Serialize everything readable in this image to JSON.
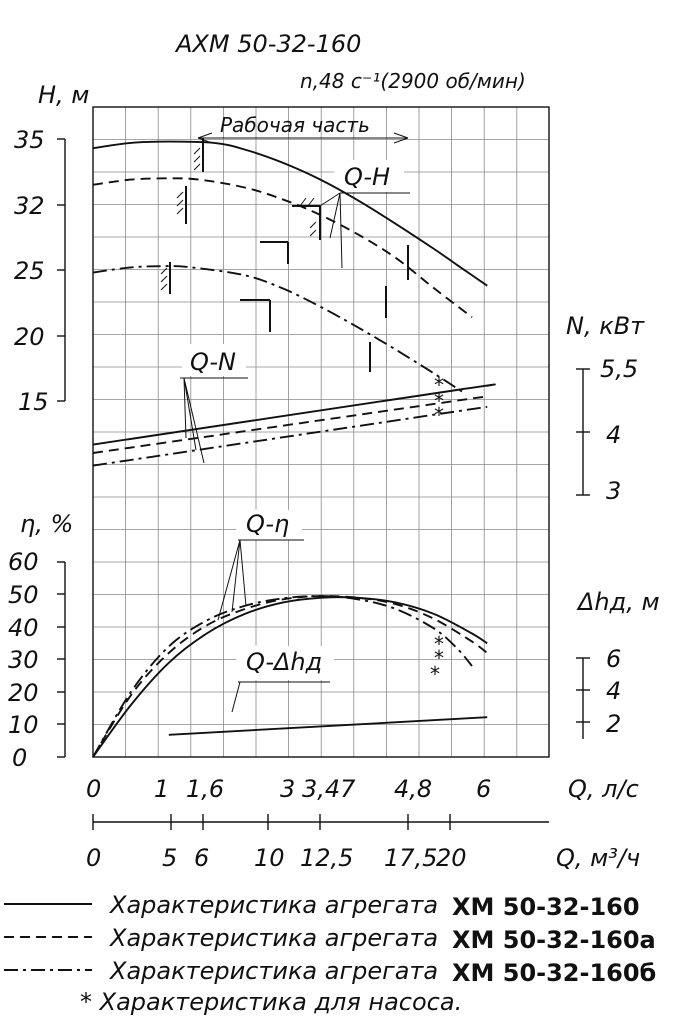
{
  "chart_data": {
    "type": "line",
    "title": "АХМ 50-32-160",
    "subtitle": "n,48 с⁻¹(2900 об/мин)",
    "x_axes": {
      "q_ls": {
        "label": "Q, л/с",
        "ticks": [
          {
            "label": "0",
            "value": 0
          },
          {
            "label": "1",
            "value": 1
          },
          {
            "label": "1,6",
            "value": 1.6
          },
          {
            "label": "3",
            "value": 3
          },
          {
            "label": "3,47",
            "value": 3.47
          },
          {
            "label": "4,8",
            "value": 4.8
          },
          {
            "label": "6",
            "value": 6
          }
        ]
      },
      "q_m3h": {
        "label": "Q, м³/ч",
        "ticks": [
          {
            "label": "0",
            "value": 0
          },
          {
            "label": "5",
            "value": 5
          },
          {
            "label": "6",
            "value": 6
          },
          {
            "label": "10",
            "value": 10
          },
          {
            "label": "12,5",
            "value": 12.5
          },
          {
            "label": "17,5",
            "value": 17.5
          },
          {
            "label": "20",
            "value": 20
          }
        ]
      }
    },
    "y_axes": {
      "head": {
        "label": "H, м",
        "ticks": [
          "35",
          "32",
          "25",
          "20",
          "15"
        ]
      },
      "power": {
        "label": "N, кВт",
        "ticks": [
          "5,5",
          "4",
          "3"
        ]
      },
      "efficiency": {
        "label": "η, %",
        "ticks": [
          "60",
          "50",
          "40",
          "30",
          "20",
          "10",
          "0"
        ]
      },
      "npsh": {
        "label": "Δhд, м",
        "ticks": [
          "6",
          "4",
          "2"
        ]
      }
    },
    "working_range_label": "Рабочая часть",
    "curve_labels": {
      "qh": "Q-H",
      "qn": "Q-N",
      "qeta": "Q-η",
      "qdh": "Q-Δhд"
    },
    "series": [
      {
        "id": "XM 50-32-160",
        "style": "solid",
        "head_q": [
          0,
          0.5,
          1.0,
          1.6,
          2.0,
          2.5,
          3.0,
          3.5,
          4.0,
          4.5,
          4.8,
          5.2
        ],
        "head_h": [
          34.3,
          34.7,
          34.8,
          34.7,
          34.2,
          33.2,
          31.9,
          30.3,
          28.5,
          26.6,
          25.4,
          23.8
        ],
        "power_q": [
          0,
          4.8,
          5.2
        ],
        "power_n": [
          3.7,
          5.0,
          5.1
        ],
        "eff_q": [
          0,
          0.5,
          1.0,
          1.5,
          2.0,
          2.5,
          3.0,
          3.5,
          4.0,
          4.5,
          5.0,
          5.2
        ],
        "eff_eta": [
          0,
          16,
          29,
          38,
          44,
          47.5,
          49,
          49,
          47.5,
          44,
          38,
          35
        ]
      },
      {
        "id": "XM 50-32-160a",
        "style": "dashed",
        "head_q": [
          0,
          0.5,
          1.0,
          1.4,
          2.0,
          2.5,
          3.0,
          3.5,
          4.0,
          4.5,
          5.0
        ],
        "head_h": [
          31.5,
          31.9,
          32.0,
          31.9,
          31.3,
          30.4,
          29.2,
          27.7,
          25.9,
          23.6,
          21.4
        ],
        "power_q": [
          0,
          5.2
        ],
        "power_n": [
          3.5,
          4.85
        ],
        "eff_q": [
          0,
          0.5,
          1.0,
          1.5,
          2.0,
          2.5,
          3.0,
          3.5,
          4.0,
          4.5,
          5.0,
          5.2
        ],
        "eff_eta": [
          0,
          19,
          32,
          40.5,
          45.5,
          48.5,
          49.5,
          49,
          47,
          42.5,
          35.5,
          32
        ]
      },
      {
        "id": "XM 50-32-160б",
        "style": "dashdot",
        "head_q": [
          0,
          0.5,
          1.0,
          1.3,
          2.0,
          2.5,
          3.0,
          3.5,
          4.0,
          4.5,
          4.9
        ],
        "head_h": [
          24.8,
          25.2,
          25.3,
          25.2,
          24.6,
          23.6,
          22.2,
          20.6,
          18.9,
          17.1,
          15.6
        ],
        "power_q": [
          0,
          5.2
        ],
        "power_n": [
          3.2,
          4.6
        ],
        "eff_q": [
          0,
          0.5,
          1.0,
          1.5,
          2.0,
          2.5,
          3.0,
          3.5,
          4.0,
          4.5,
          4.8,
          5.0
        ],
        "eff_eta": [
          0,
          20,
          34,
          42,
          46.5,
          48.8,
          49.5,
          48.5,
          45.5,
          39.5,
          33.5,
          28
        ]
      }
    ],
    "npsh_curve": {
      "q": [
        1.0,
        5.2
      ],
      "dh": [
        1.2,
        2.3
      ]
    },
    "legend": [
      {
        "style": "solid",
        "text": "Характеристика агрегата",
        "model": "ХМ 50-32-160"
      },
      {
        "style": "dashed",
        "text": "Характеристика агрегата",
        "model": "ХМ 50-32-160а"
      },
      {
        "style": "dashdot",
        "text": "Характеристика агрегата",
        "model": "ХМ 50-32-160б"
      }
    ],
    "footnote": "* Характеристика для насоса.",
    "asterisk": "*",
    "grid": true,
    "legend_position": "bottom"
  }
}
